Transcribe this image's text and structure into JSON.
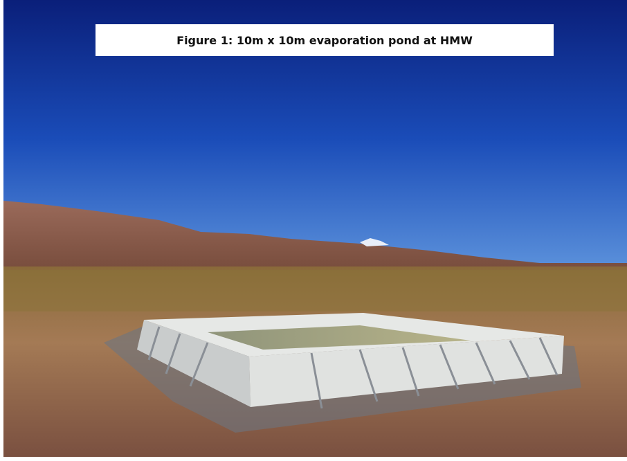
{
  "caption": "Figure 1: 10m x 10m evaporation pond at HMW"
}
